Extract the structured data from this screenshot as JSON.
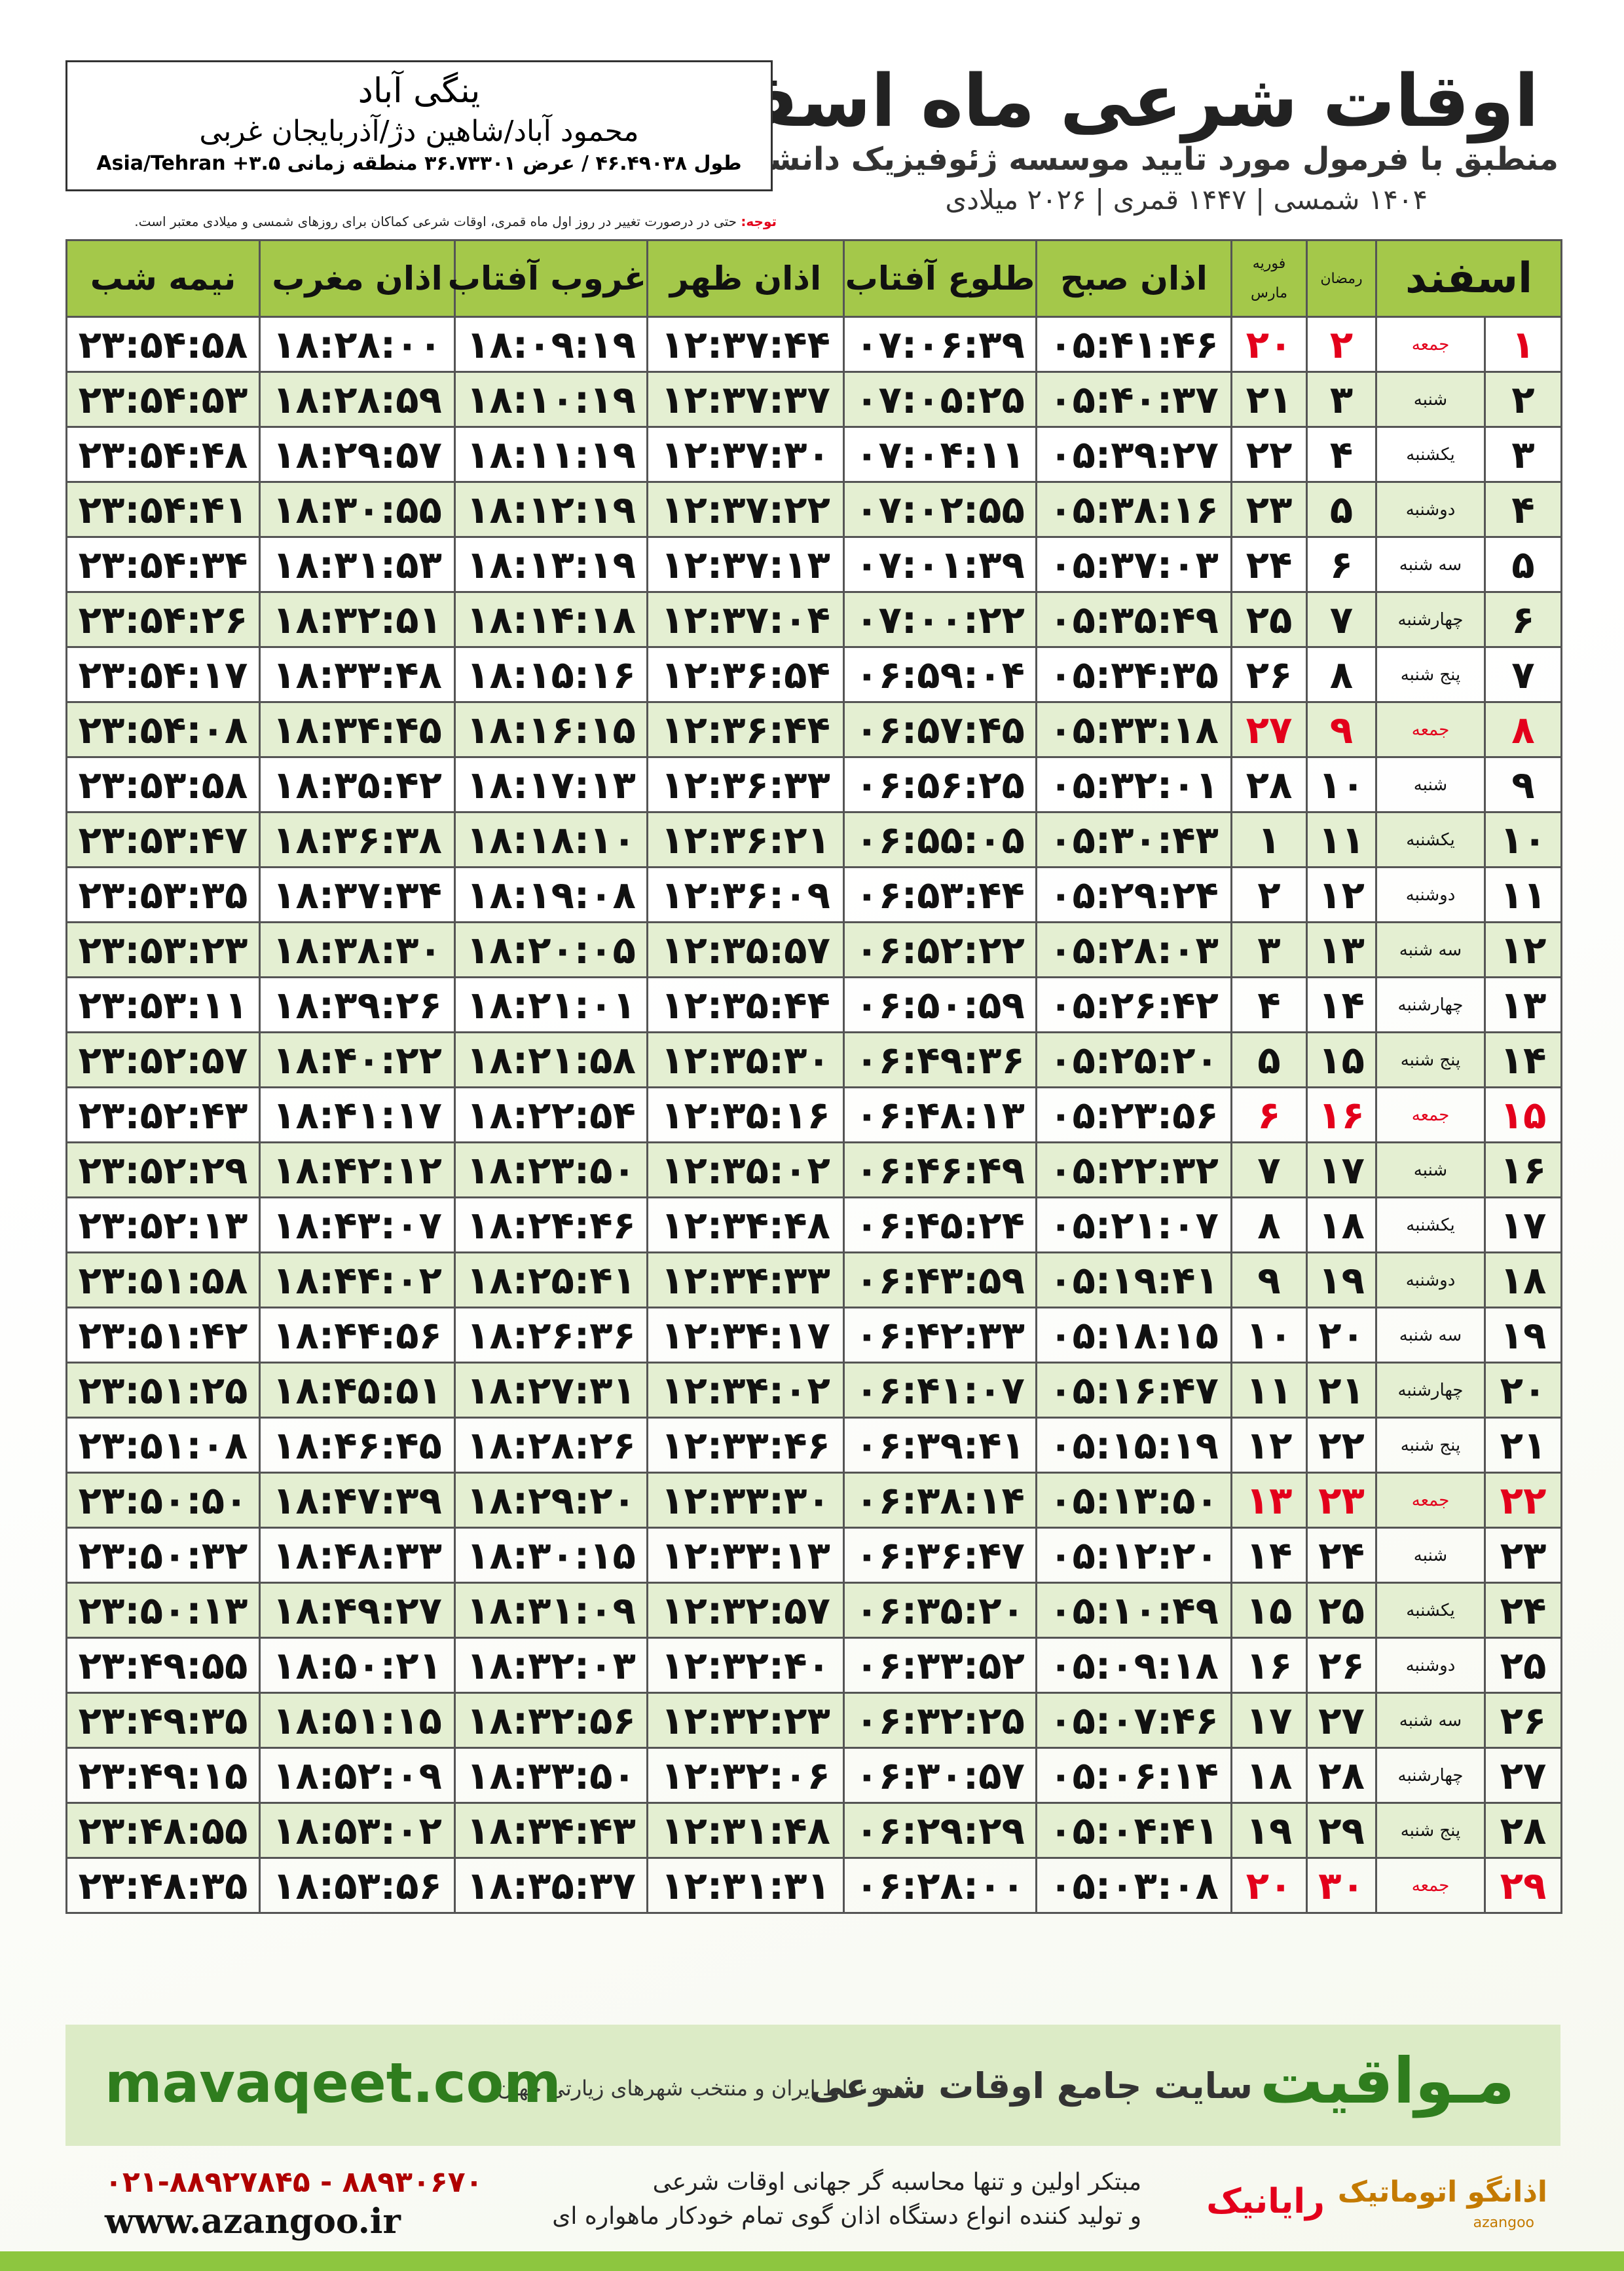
{
  "header": {
    "title": "اوقات شرعی ماه اسفند",
    "subtitle": "منطبق با فرمول مورد تایید موسسه ژئوفیزیک دانشگاه تهران",
    "dates": "۱۴۰۴ شمسی | ۱۴۴۷ قمری | ۲۰۲۶ میلادی"
  },
  "location": {
    "name": "ینگی آباد",
    "region": "محمود آباد/شاهین دژ/آذربایجان غربی",
    "coords": "طول ۴۶.۴۹۰۳۸ / عرض ۳۶.۷۳۳۰۱ منطقه زمانی ۳.۵+ Asia/Tehran"
  },
  "note": {
    "label": "توجه:",
    "text": "حتی در درصورت تغییر در روز اول ماه قمری، اوقات شرعی کماکان برای روزهای شمسی و میلادی معتبر است."
  },
  "table": {
    "headers": [
      "اسفند",
      "رمضان",
      "فوریه",
      "مارس",
      "اذان صبح",
      "طلوع آفتاب",
      "اذان ظهر",
      "غروب آفتاب",
      "اذان مغرب",
      "نیمه شب"
    ],
    "highlight_rows": [
      0,
      7,
      14,
      21,
      28
    ],
    "highlight_color": "#e3001b",
    "rows": [
      [
        "۱",
        "جمعه",
        "۲",
        "۲۰",
        "۰۵:۴۱:۴۶",
        "۰۷:۰۶:۳۹",
        "۱۲:۳۷:۴۴",
        "۱۸:۰۹:۱۹",
        "۱۸:۲۸:۰۰",
        "۲۳:۵۴:۵۸"
      ],
      [
        "۲",
        "شنبه",
        "۳",
        "۲۱",
        "۰۵:۴۰:۳۷",
        "۰۷:۰۵:۲۵",
        "۱۲:۳۷:۳۷",
        "۱۸:۱۰:۱۹",
        "۱۸:۲۸:۵۹",
        "۲۳:۵۴:۵۳"
      ],
      [
        "۳",
        "یکشنبه",
        "۴",
        "۲۲",
        "۰۵:۳۹:۲۷",
        "۰۷:۰۴:۱۱",
        "۱۲:۳۷:۳۰",
        "۱۸:۱۱:۱۹",
        "۱۸:۲۹:۵۷",
        "۲۳:۵۴:۴۸"
      ],
      [
        "۴",
        "دوشنبه",
        "۵",
        "۲۳",
        "۰۵:۳۸:۱۶",
        "۰۷:۰۲:۵۵",
        "۱۲:۳۷:۲۲",
        "۱۸:۱۲:۱۹",
        "۱۸:۳۰:۵۵",
        "۲۳:۵۴:۴۱"
      ],
      [
        "۵",
        "سه شنبه",
        "۶",
        "۲۴",
        "۰۵:۳۷:۰۳",
        "۰۷:۰۱:۳۹",
        "۱۲:۳۷:۱۳",
        "۱۸:۱۳:۱۹",
        "۱۸:۳۱:۵۳",
        "۲۳:۵۴:۳۴"
      ],
      [
        "۶",
        "چهارشنبه",
        "۷",
        "۲۵",
        "۰۵:۳۵:۴۹",
        "۰۷:۰۰:۲۲",
        "۱۲:۳۷:۰۴",
        "۱۸:۱۴:۱۸",
        "۱۸:۳۲:۵۱",
        "۲۳:۵۴:۲۶"
      ],
      [
        "۷",
        "پنج شنبه",
        "۸",
        "۲۶",
        "۰۵:۳۴:۳۵",
        "۰۶:۵۹:۰۴",
        "۱۲:۳۶:۵۴",
        "۱۸:۱۵:۱۶",
        "۱۸:۳۳:۴۸",
        "۲۳:۵۴:۱۷"
      ],
      [
        "۸",
        "جمعه",
        "۹",
        "۲۷",
        "۰۵:۳۳:۱۸",
        "۰۶:۵۷:۴۵",
        "۱۲:۳۶:۴۴",
        "۱۸:۱۶:۱۵",
        "۱۸:۳۴:۴۵",
        "۲۳:۵۴:۰۸"
      ],
      [
        "۹",
        "شنبه",
        "۱۰",
        "۲۸",
        "۰۵:۳۲:۰۱",
        "۰۶:۵۶:۲۵",
        "۱۲:۳۶:۳۳",
        "۱۸:۱۷:۱۳",
        "۱۸:۳۵:۴۲",
        "۲۳:۵۳:۵۸"
      ],
      [
        "۱۰",
        "یکشنبه",
        "۱۱",
        "۱",
        "۰۵:۳۰:۴۳",
        "۰۶:۵۵:۰۵",
        "۱۲:۳۶:۲۱",
        "۱۸:۱۸:۱۰",
        "۱۸:۳۶:۳۸",
        "۲۳:۵۳:۴۷"
      ],
      [
        "۱۱",
        "دوشنبه",
        "۱۲",
        "۲",
        "۰۵:۲۹:۲۴",
        "۰۶:۵۳:۴۴",
        "۱۲:۳۶:۰۹",
        "۱۸:۱۹:۰۸",
        "۱۸:۳۷:۳۴",
        "۲۳:۵۳:۳۵"
      ],
      [
        "۱۲",
        "سه شنبه",
        "۱۳",
        "۳",
        "۰۵:۲۸:۰۳",
        "۰۶:۵۲:۲۲",
        "۱۲:۳۵:۵۷",
        "۱۸:۲۰:۰۵",
        "۱۸:۳۸:۳۰",
        "۲۳:۵۳:۲۳"
      ],
      [
        "۱۳",
        "چهارشنبه",
        "۱۴",
        "۴",
        "۰۵:۲۶:۴۲",
        "۰۶:۵۰:۵۹",
        "۱۲:۳۵:۴۴",
        "۱۸:۲۱:۰۱",
        "۱۸:۳۹:۲۶",
        "۲۳:۵۳:۱۱"
      ],
      [
        "۱۴",
        "پنج شنبه",
        "۱۵",
        "۵",
        "۰۵:۲۵:۲۰",
        "۰۶:۴۹:۳۶",
        "۱۲:۳۵:۳۰",
        "۱۸:۲۱:۵۸",
        "۱۸:۴۰:۲۲",
        "۲۳:۵۲:۵۷"
      ],
      [
        "۱۵",
        "جمعه",
        "۱۶",
        "۶",
        "۰۵:۲۳:۵۶",
        "۰۶:۴۸:۱۳",
        "۱۲:۳۵:۱۶",
        "۱۸:۲۲:۵۴",
        "۱۸:۴۱:۱۷",
        "۲۳:۵۲:۴۳"
      ],
      [
        "۱۶",
        "شنبه",
        "۱۷",
        "۷",
        "۰۵:۲۲:۳۲",
        "۰۶:۴۶:۴۹",
        "۱۲:۳۵:۰۲",
        "۱۸:۲۳:۵۰",
        "۱۸:۴۲:۱۲",
        "۲۳:۵۲:۲۹"
      ],
      [
        "۱۷",
        "یکشنبه",
        "۱۸",
        "۸",
        "۰۵:۲۱:۰۷",
        "۰۶:۴۵:۲۴",
        "۱۲:۳۴:۴۸",
        "۱۸:۲۴:۴۶",
        "۱۸:۴۳:۰۷",
        "۲۳:۵۲:۱۳"
      ],
      [
        "۱۸",
        "دوشنبه",
        "۱۹",
        "۹",
        "۰۵:۱۹:۴۱",
        "۰۶:۴۳:۵۹",
        "۱۲:۳۴:۳۳",
        "۱۸:۲۵:۴۱",
        "۱۸:۴۴:۰۲",
        "۲۳:۵۱:۵۸"
      ],
      [
        "۱۹",
        "سه شنبه",
        "۲۰",
        "۱۰",
        "۰۵:۱۸:۱۵",
        "۰۶:۴۲:۳۳",
        "۱۲:۳۴:۱۷",
        "۱۸:۲۶:۳۶",
        "۱۸:۴۴:۵۶",
        "۲۳:۵۱:۴۲"
      ],
      [
        "۲۰",
        "چهارشنبه",
        "۲۱",
        "۱۱",
        "۰۵:۱۶:۴۷",
        "۰۶:۴۱:۰۷",
        "۱۲:۳۴:۰۲",
        "۱۸:۲۷:۳۱",
        "۱۸:۴۵:۵۱",
        "۲۳:۵۱:۲۵"
      ],
      [
        "۲۱",
        "پنج شنبه",
        "۲۲",
        "۱۲",
        "۰۵:۱۵:۱۹",
        "۰۶:۳۹:۴۱",
        "۱۲:۳۳:۴۶",
        "۱۸:۲۸:۲۶",
        "۱۸:۴۶:۴۵",
        "۲۳:۵۱:۰۸"
      ],
      [
        "۲۲",
        "جمعه",
        "۲۳",
        "۱۳",
        "۰۵:۱۳:۵۰",
        "۰۶:۳۸:۱۴",
        "۱۲:۳۳:۳۰",
        "۱۸:۲۹:۲۰",
        "۱۸:۴۷:۳۹",
        "۲۳:۵۰:۵۰"
      ],
      [
        "۲۳",
        "شنبه",
        "۲۴",
        "۱۴",
        "۰۵:۱۲:۲۰",
        "۰۶:۳۶:۴۷",
        "۱۲:۳۳:۱۳",
        "۱۸:۳۰:۱۵",
        "۱۸:۴۸:۳۳",
        "۲۳:۵۰:۳۲"
      ],
      [
        "۲۴",
        "یکشنبه",
        "۲۵",
        "۱۵",
        "۰۵:۱۰:۴۹",
        "۰۶:۳۵:۲۰",
        "۱۲:۳۲:۵۷",
        "۱۸:۳۱:۰۹",
        "۱۸:۴۹:۲۷",
        "۲۳:۵۰:۱۳"
      ],
      [
        "۲۵",
        "دوشنبه",
        "۲۶",
        "۱۶",
        "۰۵:۰۹:۱۸",
        "۰۶:۳۳:۵۲",
        "۱۲:۳۲:۴۰",
        "۱۸:۳۲:۰۳",
        "۱۸:۵۰:۲۱",
        "۲۳:۴۹:۵۵"
      ],
      [
        "۲۶",
        "سه شنبه",
        "۲۷",
        "۱۷",
        "۰۵:۰۷:۴۶",
        "۰۶:۳۲:۲۵",
        "۱۲:۳۲:۲۳",
        "۱۸:۳۲:۵۶",
        "۱۸:۵۱:۱۵",
        "۲۳:۴۹:۳۵"
      ],
      [
        "۲۷",
        "چهارشنبه",
        "۲۸",
        "۱۸",
        "۰۵:۰۶:۱۴",
        "۰۶:۳۰:۵۷",
        "۱۲:۳۲:۰۶",
        "۱۸:۳۳:۵۰",
        "۱۸:۵۲:۰۹",
        "۲۳:۴۹:۱۵"
      ],
      [
        "۲۸",
        "پنج شنبه",
        "۲۹",
        "۱۹",
        "۰۵:۰۴:۴۱",
        "۰۶:۲۹:۲۹",
        "۱۲:۳۱:۴۸",
        "۱۸:۳۴:۴۳",
        "۱۸:۵۳:۰۲",
        "۲۳:۴۸:۵۵"
      ],
      [
        "۲۹",
        "جمعه",
        "۳۰",
        "۲۰",
        "۰۵:۰۳:۰۸",
        "۰۶:۲۸:۰۰",
        "۱۲:۳۱:۳۱",
        "۱۸:۳۵:۳۷",
        "۱۸:۵۳:۵۶",
        "۲۳:۴۸:۳۵"
      ]
    ]
  },
  "banner": {
    "brand": "مـواقیت",
    "tagline": "سایت جامع اوقات شرعی",
    "coverage": "همه نقاط ایران و منتخب شهرهای زیارتی جهان",
    "site": "mavaqeet.com"
  },
  "footer": {
    "phones": "۰۲۱-۸۸۹۲۷۸۴۵ - ۸۸۹۳۰۶۷۰",
    "site": "www.azangoo.ir",
    "line1": "مبتکر اولین و تنها محاسبه گر جهانی اوقات شرعی",
    "line2": "و تولید کننده انواع دستگاه اذان گوی تمام خودکار ماهواره ای",
    "logo1": "رایانیک",
    "logo2": "اذانگو اتوماتیک",
    "logo3": "azangoo"
  }
}
